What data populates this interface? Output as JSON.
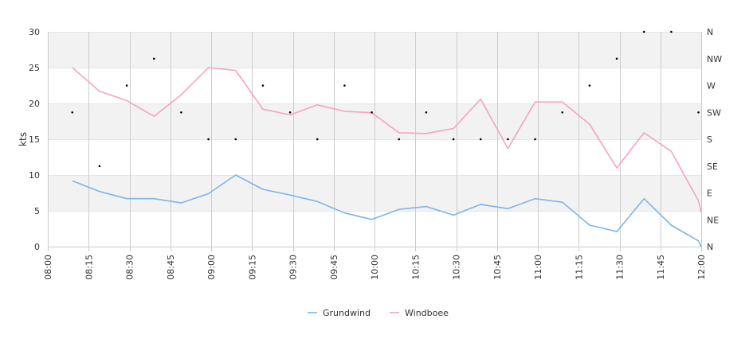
{
  "chart_data": {
    "type": "line",
    "y_axis_label": "kts",
    "ylim": [
      0,
      30
    ],
    "y_ticks": [
      "0",
      "5",
      "10",
      "15",
      "20",
      "25",
      "30"
    ],
    "right_axis_ticks": [
      "N",
      "NE",
      "E",
      "SE",
      "S",
      "SW",
      "W",
      "NW",
      "N"
    ],
    "x_ticks": [
      "08:00",
      "08:15",
      "08:30",
      "08:45",
      "09:00",
      "09:15",
      "09:30",
      "09:45",
      "10:00",
      "10:15",
      "10:30",
      "10:45",
      "11:00",
      "11:15",
      "11:30",
      "11:45",
      "12:00"
    ],
    "x_range": [
      "08:00",
      "12:00"
    ],
    "grid": true,
    "legend_position": "bottom",
    "series": [
      {
        "name": "Grundwind",
        "color": "#7cb5ec",
        "points": [
          [
            "08:09",
            9.2
          ],
          [
            "08:19",
            7.7
          ],
          [
            "08:29",
            6.7
          ],
          [
            "08:39",
            6.7
          ],
          [
            "08:49",
            6.1
          ],
          [
            "08:59",
            7.4
          ],
          [
            "09:09",
            10.0
          ],
          [
            "09:19",
            8.0
          ],
          [
            "09:29",
            7.2
          ],
          [
            "09:39",
            6.3
          ],
          [
            "09:49",
            4.7
          ],
          [
            "09:59",
            3.8
          ],
          [
            "10:09",
            5.2
          ],
          [
            "10:19",
            5.6
          ],
          [
            "10:29",
            4.4
          ],
          [
            "10:39",
            5.9
          ],
          [
            "10:49",
            5.3
          ],
          [
            "10:59",
            6.7
          ],
          [
            "11:09",
            6.2
          ],
          [
            "11:19",
            3.0
          ],
          [
            "11:29",
            2.1
          ],
          [
            "11:39",
            6.7
          ],
          [
            "11:49",
            3.0
          ],
          [
            "11:59",
            0.8
          ],
          [
            "12:00",
            0.0
          ]
        ]
      },
      {
        "name": "Windboee",
        "color": "#f7a1c4",
        "points": [
          [
            "08:09",
            25.0
          ],
          [
            "08:19",
            21.7
          ],
          [
            "08:29",
            20.4
          ],
          [
            "08:39",
            18.2
          ],
          [
            "08:49",
            21.2
          ],
          [
            "08:59",
            25.0
          ],
          [
            "09:09",
            24.6
          ],
          [
            "09:19",
            19.2
          ],
          [
            "09:29",
            18.4
          ],
          [
            "09:39",
            19.8
          ],
          [
            "09:49",
            18.9
          ],
          [
            "09:59",
            18.7
          ],
          [
            "10:09",
            15.9
          ],
          [
            "10:19",
            15.8
          ],
          [
            "10:29",
            16.5
          ],
          [
            "10:39",
            20.6
          ],
          [
            "10:49",
            13.7
          ],
          [
            "10:59",
            20.2
          ],
          [
            "11:09",
            20.2
          ],
          [
            "11:19",
            17.1
          ],
          [
            "11:29",
            11.0
          ],
          [
            "11:39",
            15.9
          ],
          [
            "11:49",
            13.3
          ],
          [
            "11:59",
            6.4
          ],
          [
            "12:00",
            4.8
          ]
        ]
      }
    ],
    "direction_points": [
      [
        "08:09",
        "SW"
      ],
      [
        "08:19",
        "SE"
      ],
      [
        "08:29",
        "W"
      ],
      [
        "08:39",
        "NW"
      ],
      [
        "08:49",
        "SW"
      ],
      [
        "08:59",
        "S"
      ],
      [
        "09:09",
        "S"
      ],
      [
        "09:19",
        "W"
      ],
      [
        "09:29",
        "SW"
      ],
      [
        "09:39",
        "S"
      ],
      [
        "09:49",
        "W"
      ],
      [
        "09:59",
        "SW"
      ],
      [
        "10:09",
        "S"
      ],
      [
        "10:19",
        "SW"
      ],
      [
        "10:29",
        "S"
      ],
      [
        "10:39",
        "S"
      ],
      [
        "10:49",
        "S"
      ],
      [
        "10:59",
        "S"
      ],
      [
        "11:09",
        "SW"
      ],
      [
        "11:19",
        "W"
      ],
      [
        "11:29",
        "NW"
      ],
      [
        "11:39",
        "N"
      ],
      [
        "11:49",
        "N"
      ],
      [
        "11:59",
        "SW"
      ]
    ]
  }
}
